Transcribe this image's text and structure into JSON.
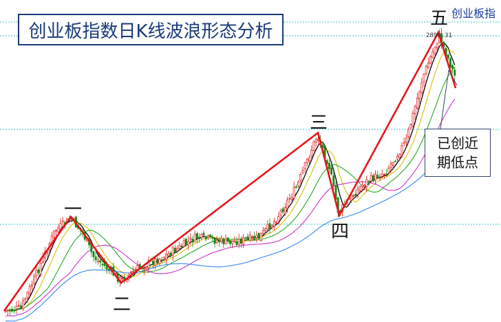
{
  "title": "创业板指数日K线波浪形态分析",
  "corner_title": "创业板指",
  "peak_value": "2896.31",
  "callout": {
    "line1": "已创近",
    "line2": "期低点"
  },
  "colors": {
    "wave_line": "#e8141a",
    "grid": "#39c0d6",
    "candle_up": "#e01010",
    "candle_down": "#108a10",
    "ma5": "#111111",
    "ma10": "#d6c200",
    "ma20": "#22aa22",
    "ma30": "#cc33cc",
    "ma60": "#3388ee"
  },
  "chart_data": {
    "type": "candlestick",
    "title": "创业板指数日K线波浪形态分析",
    "waves": [
      {
        "label": "一",
        "role": "peak"
      },
      {
        "label": "二",
        "role": "trough"
      },
      {
        "label": "三",
        "role": "peak"
      },
      {
        "label": "四",
        "role": "trough"
      },
      {
        "label": "五",
        "role": "peak",
        "value": 2896.31
      }
    ],
    "annotation": "已创近期低点",
    "grid": true
  }
}
